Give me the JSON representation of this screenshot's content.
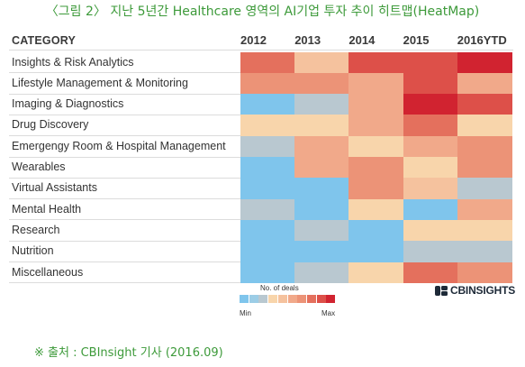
{
  "chart_data": {
    "type": "heatmap",
    "title": "〈그림 2〉 지난 5년간 Healthcare 영역의 AI기업 투자 추이 히트맵(HeatMap)",
    "row_header": "CATEGORY",
    "columns": [
      "2012",
      "2013",
      "2014",
      "2015",
      "2016YTD"
    ],
    "categories": [
      "Insights & Risk Analytics",
      "Lifestyle Management & Monitoring",
      "Imaging & Diagnostics",
      "Drug Discovery",
      "Emergengy Room & Hospital Management",
      "Wearables",
      "Virtual Assistants",
      "Mental Health",
      "Research",
      "Nutrition",
      "Miscellaneous"
    ],
    "values": [
      [
        7,
        4,
        8,
        8,
        9
      ],
      [
        6,
        6,
        5,
        8,
        5
      ],
      [
        0,
        2,
        5,
        9,
        8
      ],
      [
        3,
        3,
        5,
        7,
        3
      ],
      [
        2,
        5,
        3,
        5,
        6
      ],
      [
        0,
        5,
        6,
        3,
        6
      ],
      [
        0,
        0,
        6,
        4,
        2
      ],
      [
        2,
        0,
        3,
        0,
        5
      ],
      [
        0,
        2,
        0,
        3,
        3
      ],
      [
        0,
        0,
        0,
        2,
        2
      ],
      [
        0,
        2,
        3,
        7,
        6
      ]
    ],
    "legend": {
      "title": "No. of deals",
      "min_label": "Min",
      "max_label": "Max",
      "colors": [
        "#7fc5ec",
        "#9ccde6",
        "#b9c8d0",
        "#f8d5ab",
        "#f5c29e",
        "#f1a98a",
        "#ec9377",
        "#e4705d",
        "#dd5049",
        "#d12330"
      ]
    }
  },
  "logo": {
    "text": "CBINSIGHTS"
  },
  "source": "※ 출처 : CBInsight 기사 (2016.09)",
  "colors": {
    "title": "#3d9a3a",
    "source": "#3d9a3a",
    "logo": "#1e2a38"
  }
}
